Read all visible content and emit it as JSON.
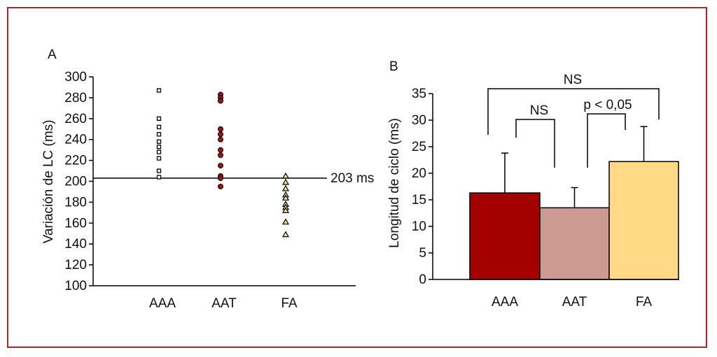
{
  "chart_data": [
    {
      "panel": "A",
      "type": "scatter",
      "ylabel": "Variación de LC (ms)",
      "ylim": [
        100,
        300
      ],
      "yticks": [
        100,
        120,
        140,
        160,
        180,
        200,
        220,
        240,
        260,
        280,
        300
      ],
      "categories": [
        "AAA",
        "AAT",
        "FA"
      ],
      "reference_line": {
        "value": 203,
        "label": "203 ms"
      },
      "series": [
        {
          "category": "AAA",
          "marker": "square",
          "fill": "#ffffff",
          "values": [
            287,
            260,
            252,
            245,
            238,
            233,
            228,
            222,
            210,
            204
          ]
        },
        {
          "category": "AAT",
          "marker": "circle",
          "fill": "#9e1414",
          "values": [
            283,
            280,
            277,
            250,
            245,
            240,
            230,
            225,
            215,
            205,
            203,
            195
          ]
        },
        {
          "category": "FA",
          "marker": "triangle",
          "fill": "#f3e2a0",
          "values": [
            205,
            199,
            193,
            187,
            184,
            178,
            175,
            172,
            161,
            149
          ]
        }
      ]
    },
    {
      "panel": "B",
      "type": "bar",
      "ylabel": "Longitud de ciclo (ms)",
      "ylim": [
        0,
        35
      ],
      "yticks": [
        0,
        5,
        10,
        15,
        20,
        25,
        30,
        35
      ],
      "categories": [
        "AAA",
        "AAT",
        "FA"
      ],
      "values": [
        16.3,
        13.5,
        22.2
      ],
      "error_bars": [
        7.5,
        3.8,
        6.6
      ],
      "colors": [
        "#a40000",
        "#cc9a91",
        "#ffd986"
      ],
      "comparisons": [
        {
          "from": "AAA",
          "to": "AAT",
          "label": "NS"
        },
        {
          "from": "AAT",
          "to": "FA",
          "label": "p < 0,05"
        },
        {
          "from": "AAA",
          "to": "FA",
          "label": "NS"
        }
      ]
    }
  ]
}
